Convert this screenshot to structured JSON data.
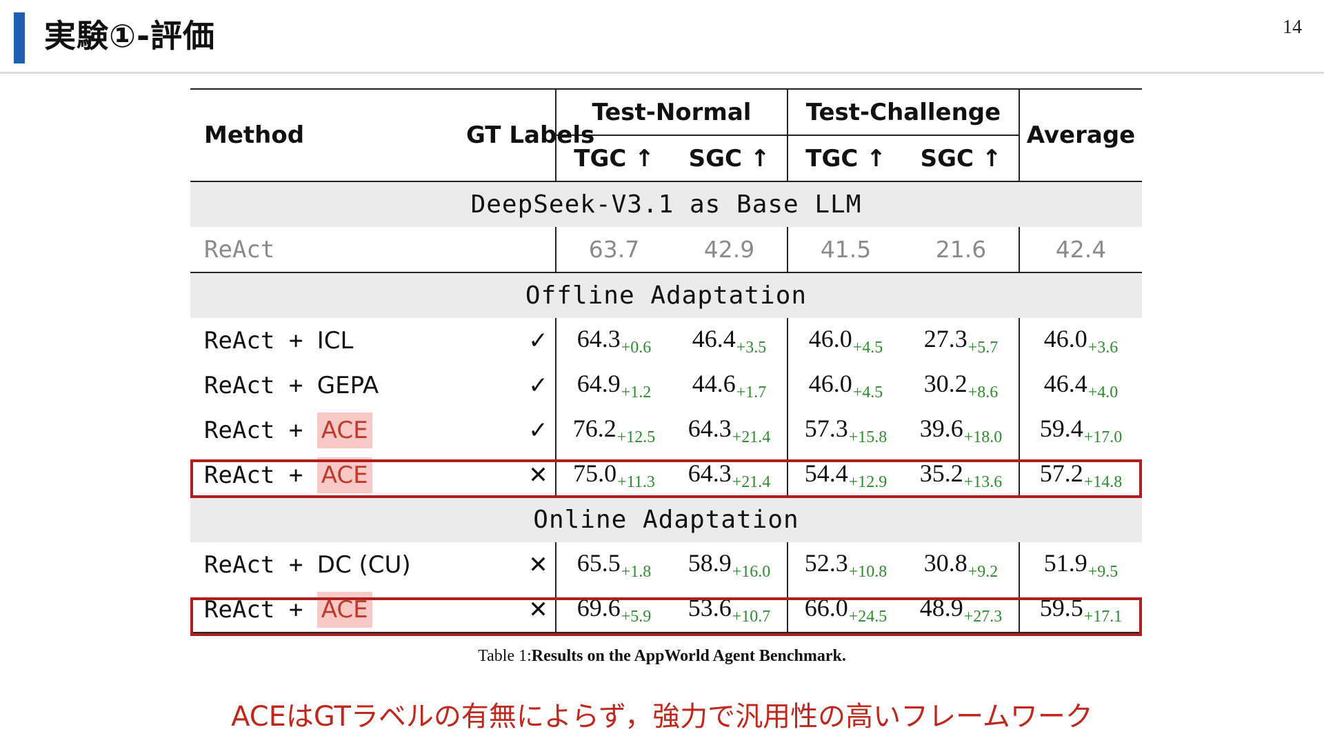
{
  "slide": {
    "title": "実験①-評価",
    "page_number": "14",
    "conclusion": "ACEはGTラベルの有無によらず，強力で汎用性の高いフレームワーク"
  },
  "table": {
    "headers": {
      "method": "Method",
      "gt_labels": "GT Labels",
      "test_normal": "Test-Normal",
      "test_challenge": "Test-Challenge",
      "average": "Average",
      "tgc": "TGC ↑",
      "sgc": "SGC ↑"
    },
    "sections": [
      "DeepSeek-V3.1 as Base LLM",
      "Offline Adaptation",
      "Online Adaptation"
    ],
    "baseline": {
      "method": "ReAct",
      "values": [
        "63.7",
        "42.9",
        "41.5",
        "21.6",
        "42.4"
      ]
    },
    "offline_rows": [
      {
        "base": "ReAct + ",
        "variant": "ICL",
        "ace": false,
        "gt": "✓",
        "values": [
          [
            "64.3",
            "+0.6"
          ],
          [
            "46.4",
            "+3.5"
          ],
          [
            "46.0",
            "+4.5"
          ],
          [
            "27.3",
            "+5.7"
          ],
          [
            "46.0",
            "+3.6"
          ]
        ]
      },
      {
        "base": "ReAct + ",
        "variant": "GEPA",
        "ace": false,
        "gt": "✓",
        "values": [
          [
            "64.9",
            "+1.2"
          ],
          [
            "44.6",
            "+1.7"
          ],
          [
            "46.0",
            "+4.5"
          ],
          [
            "30.2",
            "+8.6"
          ],
          [
            "46.4",
            "+4.0"
          ]
        ]
      },
      {
        "base": "ReAct + ",
        "variant": "ACE",
        "ace": true,
        "gt": "✓",
        "values": [
          [
            "76.2",
            "+12.5"
          ],
          [
            "64.3",
            "+21.4"
          ],
          [
            "57.3",
            "+15.8"
          ],
          [
            "39.6",
            "+18.0"
          ],
          [
            "59.4",
            "+17.0"
          ]
        ]
      },
      {
        "base": "ReAct + ",
        "variant": "ACE",
        "ace": true,
        "gt": "✕",
        "values": [
          [
            "75.0",
            "+11.3"
          ],
          [
            "64.3",
            "+21.4"
          ],
          [
            "54.4",
            "+12.9"
          ],
          [
            "35.2",
            "+13.6"
          ],
          [
            "57.2",
            "+14.8"
          ]
        ]
      }
    ],
    "online_rows": [
      {
        "base": "ReAct + ",
        "variant": "DC (CU)",
        "ace": false,
        "gt": "✕",
        "values": [
          [
            "65.5",
            "+1.8"
          ],
          [
            "58.9",
            "+16.0"
          ],
          [
            "52.3",
            "+10.8"
          ],
          [
            "30.8",
            "+9.2"
          ],
          [
            "51.9",
            "+9.5"
          ]
        ]
      },
      {
        "base": "ReAct + ",
        "variant": "ACE",
        "ace": true,
        "gt": "✕",
        "values": [
          [
            "69.6",
            "+5.9"
          ],
          [
            "53.6",
            "+10.7"
          ],
          [
            "66.0",
            "+24.5"
          ],
          [
            "48.9",
            "+27.3"
          ],
          [
            "59.5",
            "+17.1"
          ]
        ]
      }
    ],
    "caption_prefix": "Table 1:",
    "caption_bold": "Results on the AppWorld Agent Benchmark."
  },
  "colors": {
    "accent_bar": "#1f5fb4",
    "highlight_box": "#b01e1e",
    "delta_green": "#2e8b2e",
    "ace_bg": "#f8c9c6",
    "ace_text": "#c0392b",
    "conclusion_text": "#c0281e"
  }
}
